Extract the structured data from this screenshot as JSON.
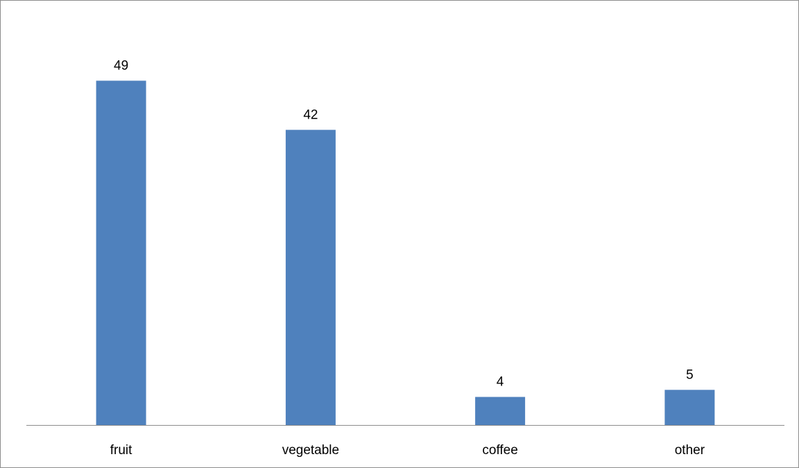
{
  "chart_data": {
    "type": "bar",
    "title": "",
    "xlabel": "",
    "ylabel": "",
    "categories": [
      "fruit",
      "vegetable",
      "coffee",
      "other"
    ],
    "series": [
      {
        "values": [
          49,
          42,
          4,
          5
        ]
      }
    ],
    "ylim": [
      0,
      52
    ],
    "grid": false,
    "legend": "none",
    "data_labels": true,
    "bar_color": "#4f81bd",
    "axis_color": "#8c8c8c"
  }
}
